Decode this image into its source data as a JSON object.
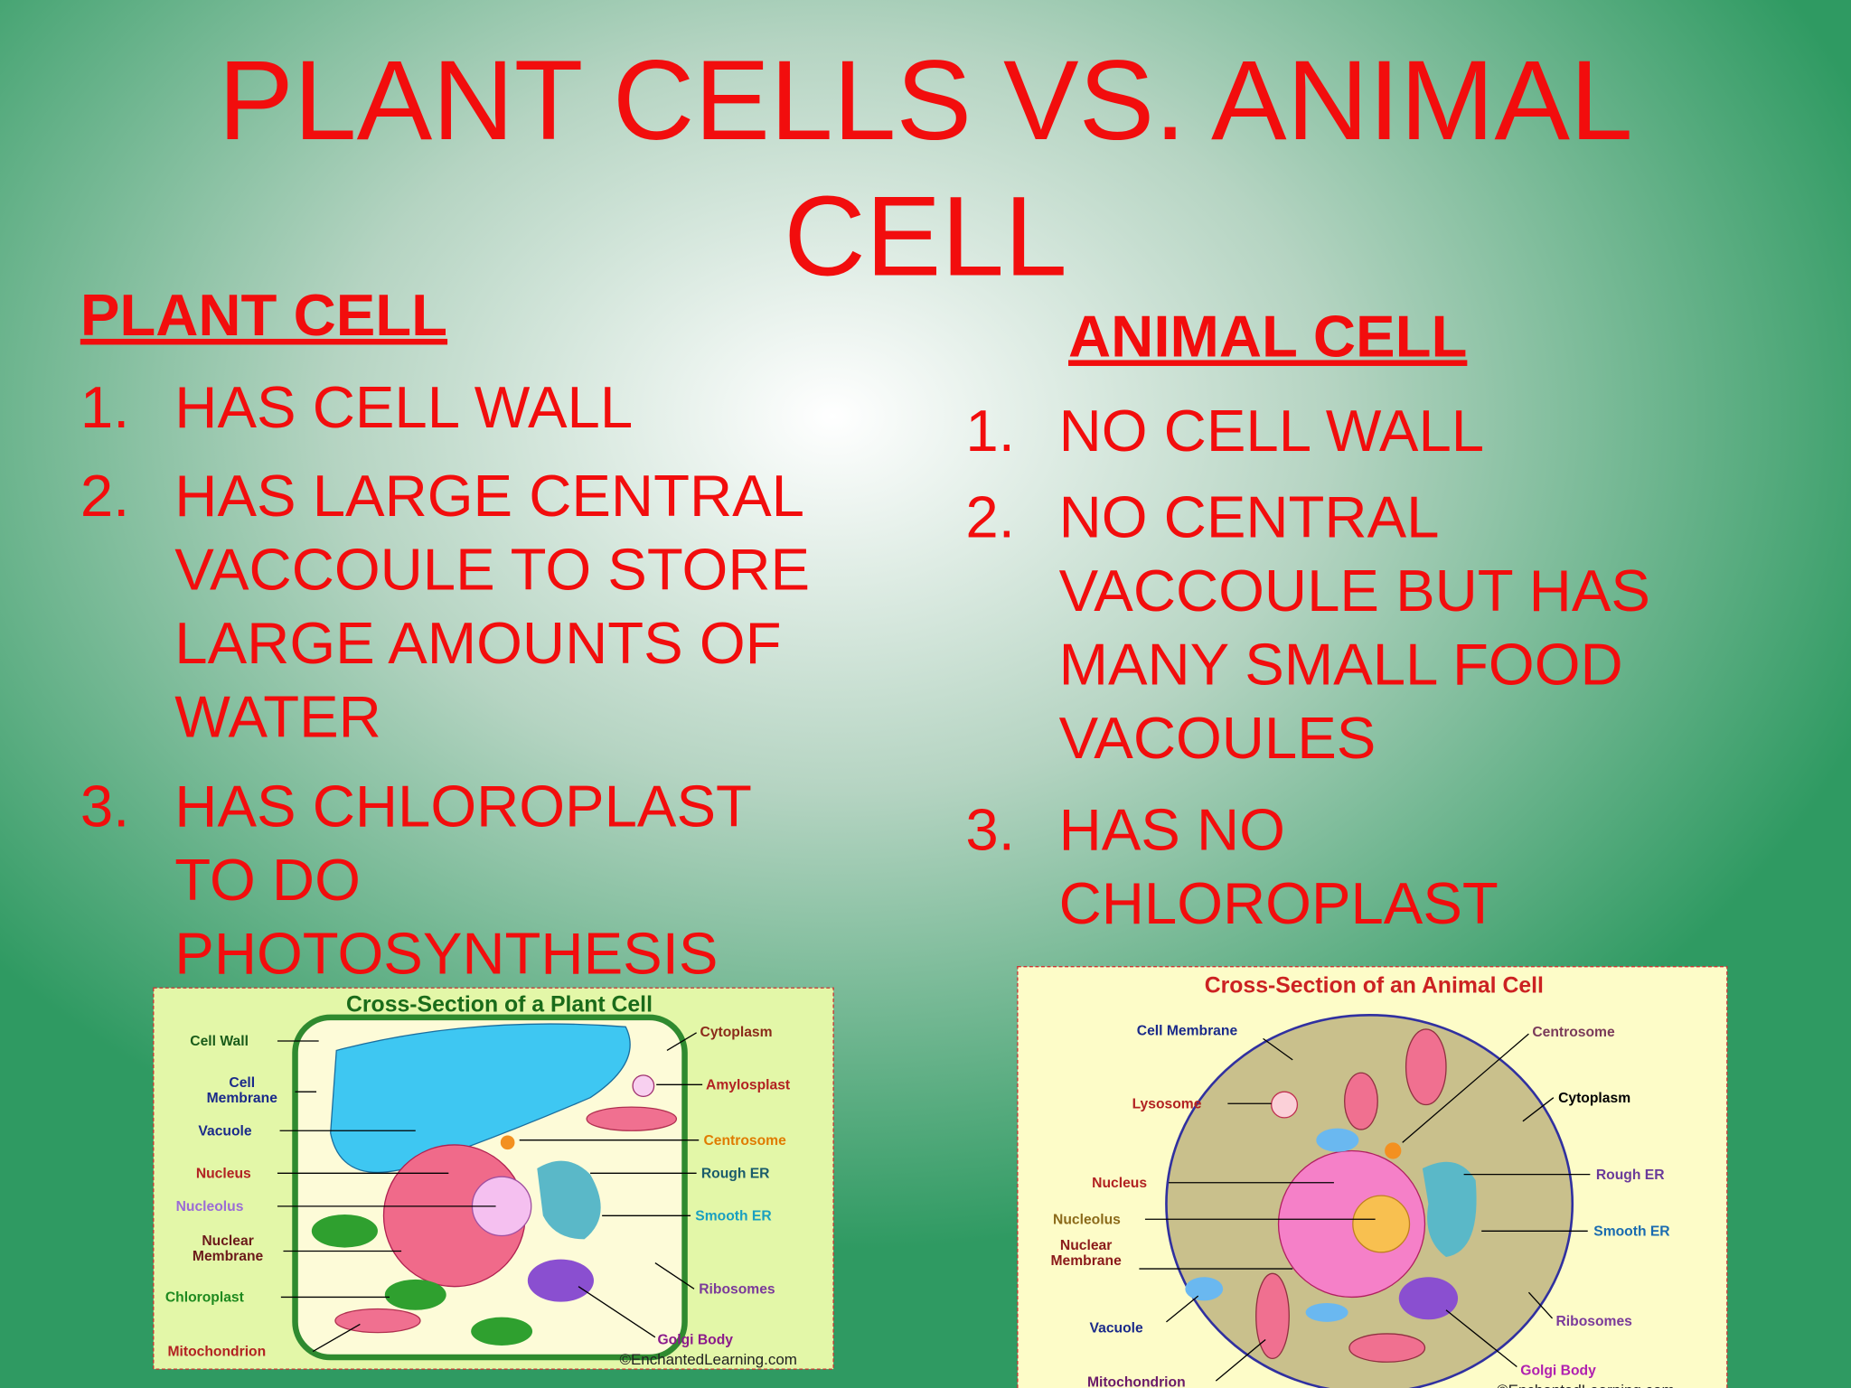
{
  "title": {
    "lines": [
      "PLANT CELLS VS. ANIMAL",
      "CELL"
    ]
  },
  "plant": {
    "heading": "PLANT CELL",
    "items": [
      {
        "number": "1.",
        "lines": [
          "HAS CELL WALL"
        ]
      },
      {
        "number": "2.",
        "lines": [
          "HAS LARGE CENTRAL",
          "VACCOULE TO STORE",
          "LARGE AMOUNTS OF",
          "WATER"
        ]
      },
      {
        "number": "3.",
        "lines": [
          "HAS CHLOROPLAST",
          "TO DO",
          "PHOTOSYNTHESIS"
        ]
      }
    ]
  },
  "animal": {
    "heading": "ANIMAL CELL",
    "items": [
      {
        "number": "1.",
        "lines": [
          "NO CELL WALL"
        ]
      },
      {
        "number": "2.",
        "lines": [
          "NO CENTRAL",
          "VACCOULE BUT HAS",
          "MANY SMALL FOOD",
          "VACOULES"
        ]
      },
      {
        "number": "3.",
        "lines": [
          "HAS NO",
          "CHLOROPLAST"
        ]
      }
    ]
  },
  "plant_diagram": {
    "title": "Cross-Section of a Plant Cell",
    "credit": "©EnchantedLearning.com",
    "labels": [
      [
        "Cell Wall"
      ],
      [
        "Cell",
        "Membrane"
      ],
      [
        "Vacuole"
      ],
      [
        "Nucleus"
      ],
      [
        "Nucleolus"
      ],
      [
        "Nuclear",
        "Membrane"
      ],
      [
        "Chloroplast"
      ],
      [
        "Mitochondrion"
      ],
      [
        "Cytoplasm"
      ],
      [
        "Amylosplast"
      ],
      [
        "Centrosome"
      ],
      [
        "Rough ER"
      ],
      [
        "Smooth ER"
      ],
      [
        "Ribosomes"
      ],
      [
        "Golgi Body"
      ]
    ]
  },
  "animal_diagram": {
    "title": "Cross-Section of an Animal Cell",
    "credit": "©EnchantedLearning.com",
    "labels": [
      [
        "Cell Membrane"
      ],
      [
        "Centrosome"
      ],
      [
        "Lysosome"
      ],
      [
        "Cytoplasm"
      ],
      [
        "Nucleus"
      ],
      [
        "Rough ER"
      ],
      [
        "Nucleolus"
      ],
      [
        "Nuclear",
        "Membrane"
      ],
      [
        "Smooth ER"
      ],
      [
        "Vacuole"
      ],
      [
        "Ribosomes"
      ],
      [
        "Golgi Body"
      ],
      [
        "Mitochondrion"
      ]
    ]
  }
}
